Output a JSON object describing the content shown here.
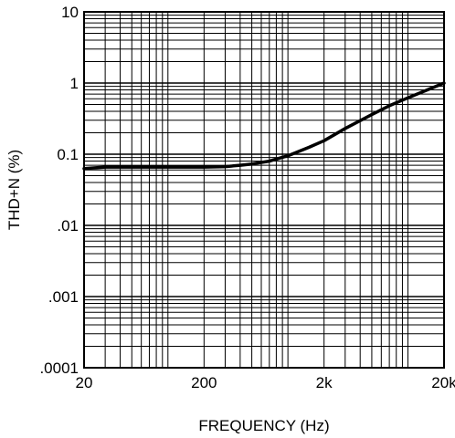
{
  "chart_data": {
    "type": "line",
    "xlabel": "FREQUENCY (Hz)",
    "ylabel": "THD+N (%)",
    "x_scale": "log",
    "y_scale": "log",
    "xlim": [
      20,
      20000
    ],
    "ylim": [
      0.0001,
      10
    ],
    "x_ticks": [
      {
        "value": 20,
        "label": "20"
      },
      {
        "value": 200,
        "label": "200"
      },
      {
        "value": 2000,
        "label": "2k"
      },
      {
        "value": 20000,
        "label": "20k"
      }
    ],
    "y_ticks": [
      {
        "value": 10,
        "label": "10"
      },
      {
        "value": 1,
        "label": "1"
      },
      {
        "value": 0.1,
        "label": "0.1"
      },
      {
        "value": 0.01,
        "label": ".01"
      },
      {
        "value": 0.001,
        "label": ".001"
      },
      {
        "value": 0.0001,
        "label": ".0001"
      }
    ],
    "grid": true,
    "series": [
      {
        "color": "#000000",
        "x": [
          20,
          30,
          50,
          100,
          200,
          300,
          400,
          500,
          700,
          1000,
          1500,
          2000,
          3000,
          5000,
          7000,
          10000,
          15000,
          20000
        ],
        "y": [
          0.063,
          0.066,
          0.066,
          0.066,
          0.066,
          0.067,
          0.07,
          0.073,
          0.08,
          0.095,
          0.125,
          0.155,
          0.23,
          0.36,
          0.48,
          0.62,
          0.82,
          1.0
        ]
      }
    ]
  }
}
